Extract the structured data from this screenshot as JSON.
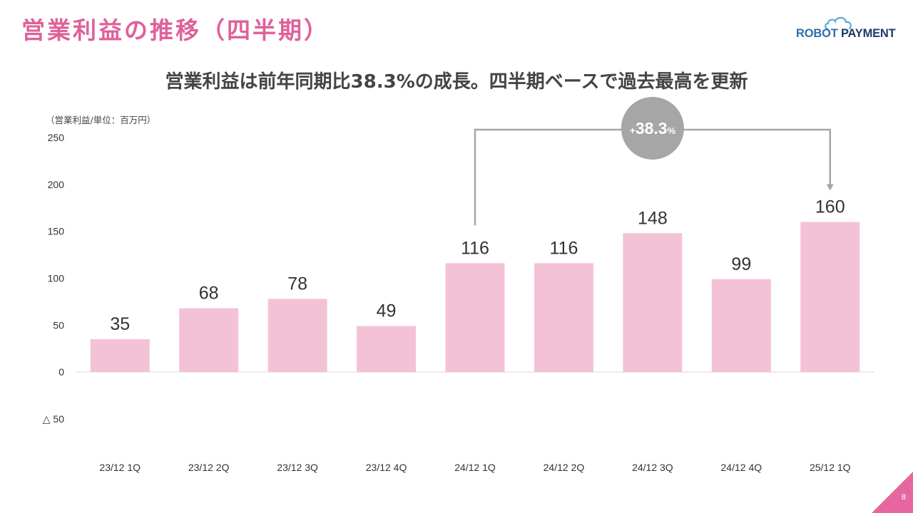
{
  "header": {
    "title": "営業利益の推移（四半期）",
    "logo_part1": "ROBOT",
    "logo_part2": " PAYMENT"
  },
  "subtitle": "営業利益は前年同期比38.3%の成長。四半期ベースで過去最高を更新",
  "unit_note": "（営業利益/単位：百万円）",
  "colors": {
    "bar": "#f4c2d7",
    "title": "#e0609b",
    "badge": "#a6a6a6",
    "bracket": "#a6a6a6"
  },
  "chart_data": {
    "type": "bar",
    "categories": [
      "23/12 1Q",
      "23/12 2Q",
      "23/12 3Q",
      "23/12 4Q",
      "24/12 1Q",
      "24/12 2Q",
      "24/12 3Q",
      "24/12 4Q",
      "25/12 1Q"
    ],
    "values": [
      35,
      68,
      78,
      49,
      116,
      116,
      148,
      99,
      160
    ],
    "ylim": [
      -50,
      250
    ],
    "yticks": [
      {
        "value": 250,
        "label": "250"
      },
      {
        "value": 200,
        "label": "200"
      },
      {
        "value": 150,
        "label": "150"
      },
      {
        "value": 100,
        "label": "100"
      },
      {
        "value": 50,
        "label": "50"
      },
      {
        "value": 0,
        "label": "0"
      },
      {
        "value": -50,
        "label": "△ 50"
      }
    ],
    "annotation": {
      "from_category": "24/12 1Q",
      "to_category": "25/12 1Q",
      "label_sign": "+",
      "label_value": "38.3",
      "label_unit": "%"
    }
  },
  "page_number": "8"
}
